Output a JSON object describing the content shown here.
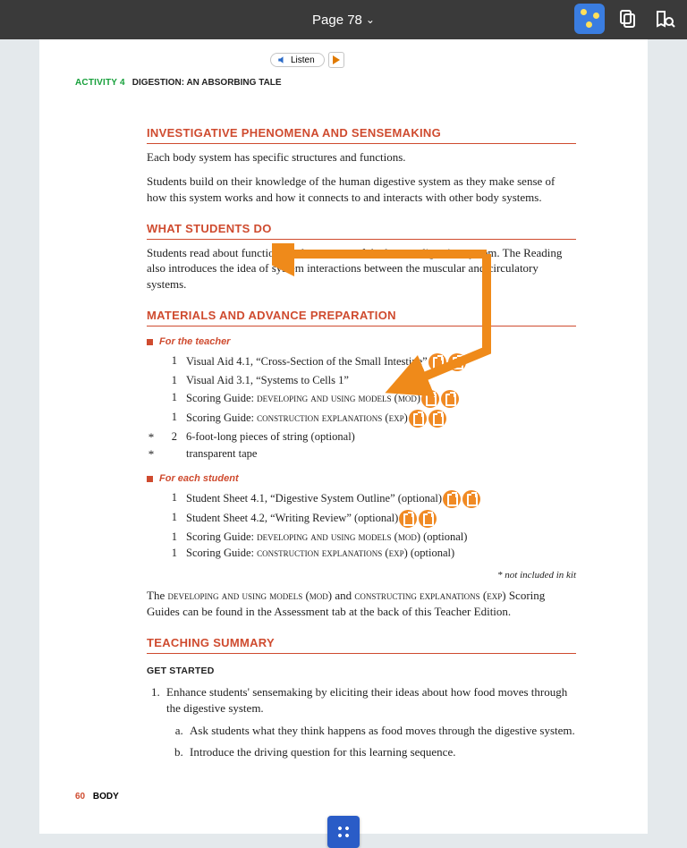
{
  "topbar": {
    "page_label": "Page 78"
  },
  "listen": {
    "label": "Listen"
  },
  "activity": {
    "number": "ACTIVITY 4",
    "title": "DIGESTION: AN ABSORBING TALE"
  },
  "sections": {
    "investigate": {
      "heading": "INVESTIGATIVE PHENOMENA AND SENSEMAKING",
      "p1": "Each body system has specific structures and functions.",
      "p2": "Students build on their knowledge of the human digestive system as they make sense of how this system works and how it connects to and interacts with other body systems."
    },
    "whatdo": {
      "heading": "WHAT STUDENTS DO",
      "p1": "Students read about functions and structures of the human digestive system. The Reading also introduces the idea of system interactions between the muscular and circulatory systems."
    },
    "materials": {
      "heading": "MATERIALS AND ADVANCE PREPARATION",
      "teacher_label": "For the teacher",
      "teacher_items": [
        {
          "star": "",
          "qty": "1",
          "desc": "Visual Aid 4.1, “Cross-Section of the Small Intestine”",
          "pills": 2
        },
        {
          "star": "",
          "qty": "1",
          "desc": "Visual Aid 3.1, “Systems to Cells 1”"
        },
        {
          "star": "",
          "qty": "1",
          "desc": "Scoring Guide: ",
          "tail": "developing and using models (mod)",
          "pills": 2
        },
        {
          "star": "",
          "qty": "1",
          "desc": "Scoring Guide: ",
          "tail": "construction explanations (exp)",
          "pills": 2
        },
        {
          "star": "*",
          "qty": "2",
          "desc": "6-foot-long pieces of string (optional)"
        },
        {
          "star": "*",
          "qty": "",
          "desc": "transparent tape"
        }
      ],
      "student_label": "For each student",
      "student_items": [
        {
          "star": "",
          "qty": "1",
          "desc": "Student Sheet 4.1, “Digestive System Outline” (optional)",
          "pills": 2
        },
        {
          "star": "",
          "qty": "1",
          "desc": "Student Sheet 4.2, “Writing Review” (optional)",
          "pills": 2
        },
        {
          "star": "",
          "qty": "1",
          "desc": "Scoring Guide: ",
          "tail": "developing and using models (mod)",
          "post": " (optional)"
        },
        {
          "star": "",
          "qty": "1",
          "desc": "Scoring Guide: ",
          "tail": "construction explanations (exp)",
          "post": " (optional)"
        }
      ],
      "kitnote": "* not included in kit",
      "para": "The developing and using models (mod) and constructing explanations (exp) Scoring Guides can be found in the Assessment tab at the back of this Teacher Edition."
    },
    "teaching": {
      "heading": "TEACHING SUMMARY",
      "sub": "GET STARTED",
      "item1": "Enhance students' sensemaking by eliciting their ideas about how food moves through the digestive system.",
      "item1a": "Ask students what they think happens as food moves through the digestive system.",
      "item1b": "Introduce the driving question for this learning sequence."
    }
  },
  "footer": {
    "page": "60",
    "label": "BODY"
  },
  "arrows": {
    "color": "#ef8a1a",
    "stroke_width": 10
  }
}
